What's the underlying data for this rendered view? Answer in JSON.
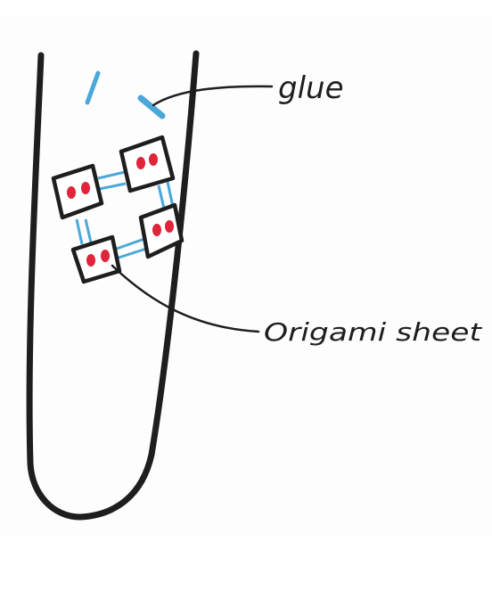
{
  "labels": {
    "glue": "glue",
    "origami_sheet": "Origami sheet"
  },
  "colors": {
    "ink": "#1e1e1e",
    "glue": "#4aa8d8",
    "dots": "#e0243a"
  }
}
